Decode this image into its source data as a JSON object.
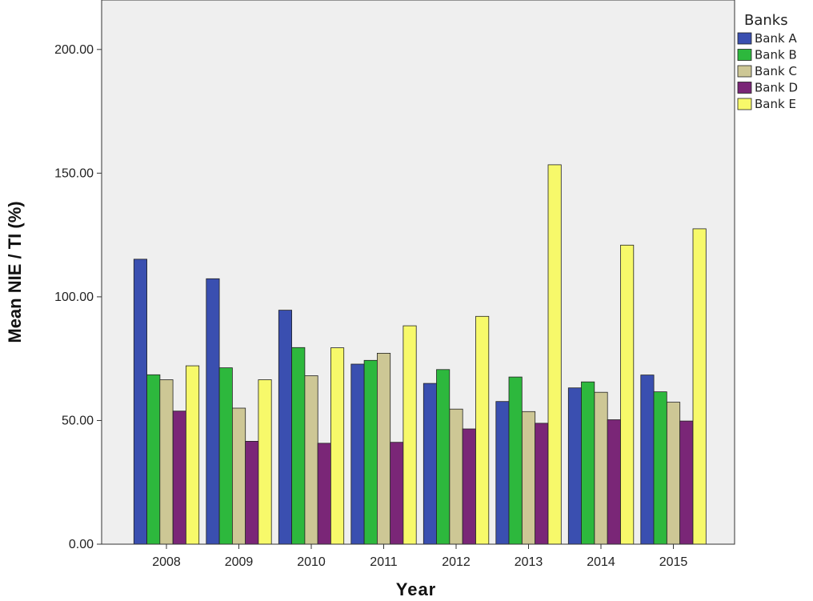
{
  "chart_data": {
    "type": "bar",
    "xlabel": "Year",
    "ylabel": "Mean NIE / TI (%)",
    "ylim": [
      0,
      220
    ],
    "yticks": [
      "0.00",
      "50.00",
      "100.00",
      "150.00",
      "200.00"
    ],
    "categories": [
      "2008",
      "2009",
      "2010",
      "2011",
      "2012",
      "2013",
      "2014",
      "2015"
    ],
    "legend_title": "Banks",
    "legend_placement": "right",
    "grid": false,
    "series": [
      {
        "name": "Bank A",
        "color": "#3a4fb0",
        "values": [
          115.2,
          107.3,
          94.6,
          72.8,
          65.0,
          57.7,
          63.2,
          68.4
        ]
      },
      {
        "name": "Bank B",
        "color": "#2db83d",
        "values": [
          68.5,
          71.3,
          79.5,
          74.3,
          70.6,
          67.6,
          65.6,
          61.6
        ]
      },
      {
        "name": "Bank C",
        "color": "#cdc795",
        "values": [
          66.5,
          55.0,
          68.1,
          77.2,
          54.6,
          53.6,
          61.4,
          57.4
        ]
      },
      {
        "name": "Bank D",
        "color": "#7a2677",
        "values": [
          53.8,
          41.6,
          40.8,
          41.2,
          46.6,
          48.9,
          50.3,
          49.8
        ]
      },
      {
        "name": "Bank E",
        "color": "#f7f96a",
        "values": [
          72.1,
          66.5,
          79.4,
          88.3,
          92.1,
          153.4,
          120.9,
          127.5
        ]
      }
    ]
  }
}
